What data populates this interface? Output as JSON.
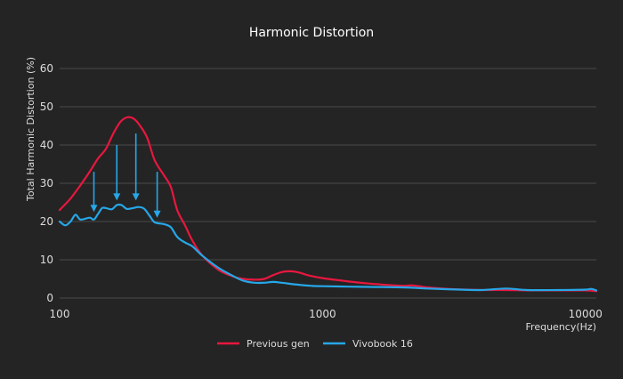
{
  "chart_data": {
    "type": "line",
    "title": "Harmonic Distortion",
    "xlabel": "Frequency(Hz)",
    "ylabel": "Total Harmonic Distortion (%)",
    "x_scale": "log",
    "xlim": [
      100,
      11000
    ],
    "ylim": [
      0,
      60
    ],
    "x_ticks": [
      100,
      1000,
      10000
    ],
    "x_tick_labels": [
      "100",
      "1000",
      "10000"
    ],
    "y_ticks": [
      0,
      10,
      20,
      30,
      40,
      50,
      60
    ],
    "grid": "horizontal",
    "legend": "bottom-center",
    "series": [
      {
        "name": "Previous gen",
        "color": "#e8173f",
        "points": [
          [
            100,
            23
          ],
          [
            110,
            26
          ],
          [
            120,
            29.5
          ],
          [
            130,
            33
          ],
          [
            140,
            36.5
          ],
          [
            150,
            39
          ],
          [
            160,
            43
          ],
          [
            170,
            46
          ],
          [
            180,
            47.2
          ],
          [
            190,
            47
          ],
          [
            200,
            45.5
          ],
          [
            215,
            42
          ],
          [
            230,
            36
          ],
          [
            250,
            32
          ],
          [
            265,
            29
          ],
          [
            280,
            23
          ],
          [
            300,
            19
          ],
          [
            320,
            15
          ],
          [
            350,
            11
          ],
          [
            400,
            7.5
          ],
          [
            450,
            5.8
          ],
          [
            500,
            5
          ],
          [
            550,
            4.8
          ],
          [
            600,
            5
          ],
          [
            650,
            6
          ],
          [
            700,
            6.8
          ],
          [
            750,
            7
          ],
          [
            800,
            6.8
          ],
          [
            900,
            5.8
          ],
          [
            1000,
            5.2
          ],
          [
            1200,
            4.5
          ],
          [
            1500,
            3.8
          ],
          [
            2000,
            3.2
          ],
          [
            2200,
            3.3
          ],
          [
            2500,
            2.8
          ],
          [
            3000,
            2.4
          ],
          [
            3500,
            2.2
          ],
          [
            4000,
            2.1
          ],
          [
            5000,
            2.1
          ],
          [
            6000,
            2.0
          ],
          [
            8000,
            2.0
          ],
          [
            10000,
            2.0
          ],
          [
            11000,
            1.8
          ]
        ]
      },
      {
        "name": "Vivobook 16",
        "color": "#26a7e8",
        "points": [
          [
            100,
            20
          ],
          [
            105,
            19
          ],
          [
            110,
            20
          ],
          [
            115,
            21.8
          ],
          [
            120,
            20.5
          ],
          [
            130,
            21
          ],
          [
            135,
            20.5
          ],
          [
            140,
            22
          ],
          [
            145,
            23.5
          ],
          [
            150,
            23.5
          ],
          [
            158,
            23.2
          ],
          [
            165,
            24.3
          ],
          [
            172,
            24.3
          ],
          [
            180,
            23.3
          ],
          [
            190,
            23.5
          ],
          [
            200,
            23.8
          ],
          [
            210,
            23.3
          ],
          [
            220,
            21.5
          ],
          [
            230,
            19.8
          ],
          [
            250,
            19.3
          ],
          [
            265,
            18.5
          ],
          [
            280,
            16
          ],
          [
            300,
            14.5
          ],
          [
            320,
            13.5
          ],
          [
            350,
            11
          ],
          [
            400,
            8
          ],
          [
            450,
            6
          ],
          [
            500,
            4.5
          ],
          [
            550,
            4
          ],
          [
            600,
            4
          ],
          [
            650,
            4.2
          ],
          [
            700,
            4
          ],
          [
            800,
            3.5
          ],
          [
            900,
            3.2
          ],
          [
            1000,
            3.1
          ],
          [
            1500,
            2.9
          ],
          [
            2000,
            2.8
          ],
          [
            2500,
            2.5
          ],
          [
            3000,
            2.3
          ],
          [
            4000,
            2.1
          ],
          [
            5000,
            2.5
          ],
          [
            6000,
            2.1
          ],
          [
            8000,
            2.1
          ],
          [
            10000,
            2.2
          ],
          [
            10500,
            2.4
          ],
          [
            11000,
            2.0
          ]
        ]
      }
    ],
    "annotations": {
      "type": "down-arrows",
      "color": "#26a7e8",
      "arrows": [
        {
          "x": 135,
          "y_from": 33,
          "y_to": 22.5
        },
        {
          "x": 165,
          "y_from": 40,
          "y_to": 25.5
        },
        {
          "x": 195,
          "y_from": 43,
          "y_to": 25.5
        },
        {
          "x": 235,
          "y_from": 33,
          "y_to": 21
        }
      ]
    }
  }
}
